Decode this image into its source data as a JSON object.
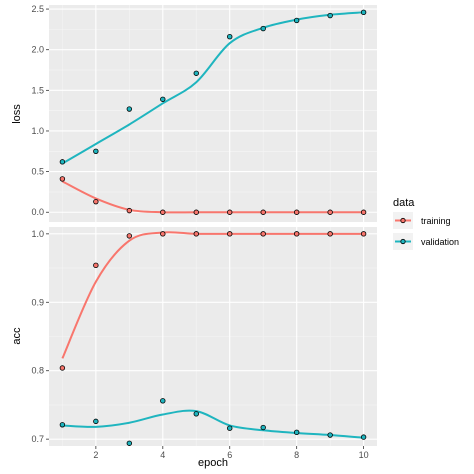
{
  "chart_data": {
    "type": "line",
    "xlabel": "epoch",
    "x_ticks": [
      2,
      4,
      6,
      8,
      10
    ],
    "xlim": [
      0.6,
      10.4
    ],
    "legend": {
      "title": "data",
      "position": "right",
      "entries": [
        {
          "label": "training",
          "color": "#F8766D"
        },
        {
          "label": "validation",
          "color": "#1FB5BF"
        }
      ]
    },
    "grid": true,
    "panels": [
      {
        "ylabel": "loss",
        "ylim": [
          -0.12,
          2.55
        ],
        "y_ticks": [
          0.0,
          0.5,
          1.0,
          1.5,
          2.0,
          2.5
        ],
        "y_tick_labels": [
          "0.0",
          "0.5",
          "1.0",
          "1.5",
          "2.0",
          "2.5"
        ],
        "series": [
          {
            "name": "training",
            "color": "#F8766D",
            "x": [
              1,
              2,
              3,
              4,
              5,
              6,
              7,
              8,
              9,
              10
            ],
            "points": [
              0.41,
              0.13,
              0.02,
              0.0,
              0.0,
              0.0,
              0.0,
              0.0,
              0.0,
              0.0
            ],
            "smooth": [
              0.38,
              0.17,
              0.03,
              0.0,
              0.0,
              0.0,
              0.0,
              0.0,
              0.0,
              0.0
            ]
          },
          {
            "name": "validation",
            "color": "#1FB5BF",
            "x": [
              1,
              2,
              3,
              4,
              5,
              6,
              7,
              8,
              9,
              10
            ],
            "points": [
              0.62,
              0.75,
              1.27,
              1.39,
              1.71,
              2.16,
              2.26,
              2.36,
              2.42,
              2.46
            ],
            "smooth": [
              0.6,
              0.84,
              1.08,
              1.34,
              1.6,
              2.08,
              2.27,
              2.37,
              2.43,
              2.46
            ]
          }
        ]
      },
      {
        "ylabel": "acc",
        "ylim": [
          0.69,
          1.01
        ],
        "y_ticks": [
          0.7,
          0.8,
          0.9,
          1.0
        ],
        "y_tick_labels": [
          "0.7",
          "0.8",
          "0.9",
          "1.0"
        ],
        "series": [
          {
            "name": "training",
            "color": "#F8766D",
            "x": [
              1,
              2,
              3,
              4,
              5,
              6,
              7,
              8,
              9,
              10
            ],
            "points": [
              0.804,
              0.954,
              0.997,
              1.0,
              1.0,
              1.0,
              1.0,
              1.0,
              1.0,
              1.0
            ],
            "smooth": [
              0.818,
              0.93,
              0.99,
              1.002,
              1.0,
              1.0,
              1.0,
              1.0,
              1.0,
              1.0
            ]
          },
          {
            "name": "validation",
            "color": "#1FB5BF",
            "x": [
              1,
              2,
              3,
              4,
              5,
              6,
              7,
              8,
              9,
              10
            ],
            "points": [
              0.721,
              0.726,
              0.694,
              0.756,
              0.737,
              0.716,
              0.717,
              0.71,
              0.706,
              0.703
            ],
            "smooth": [
              0.72,
              0.718,
              0.724,
              0.736,
              0.741,
              0.72,
              0.713,
              0.709,
              0.706,
              0.702
            ]
          }
        ]
      }
    ]
  }
}
